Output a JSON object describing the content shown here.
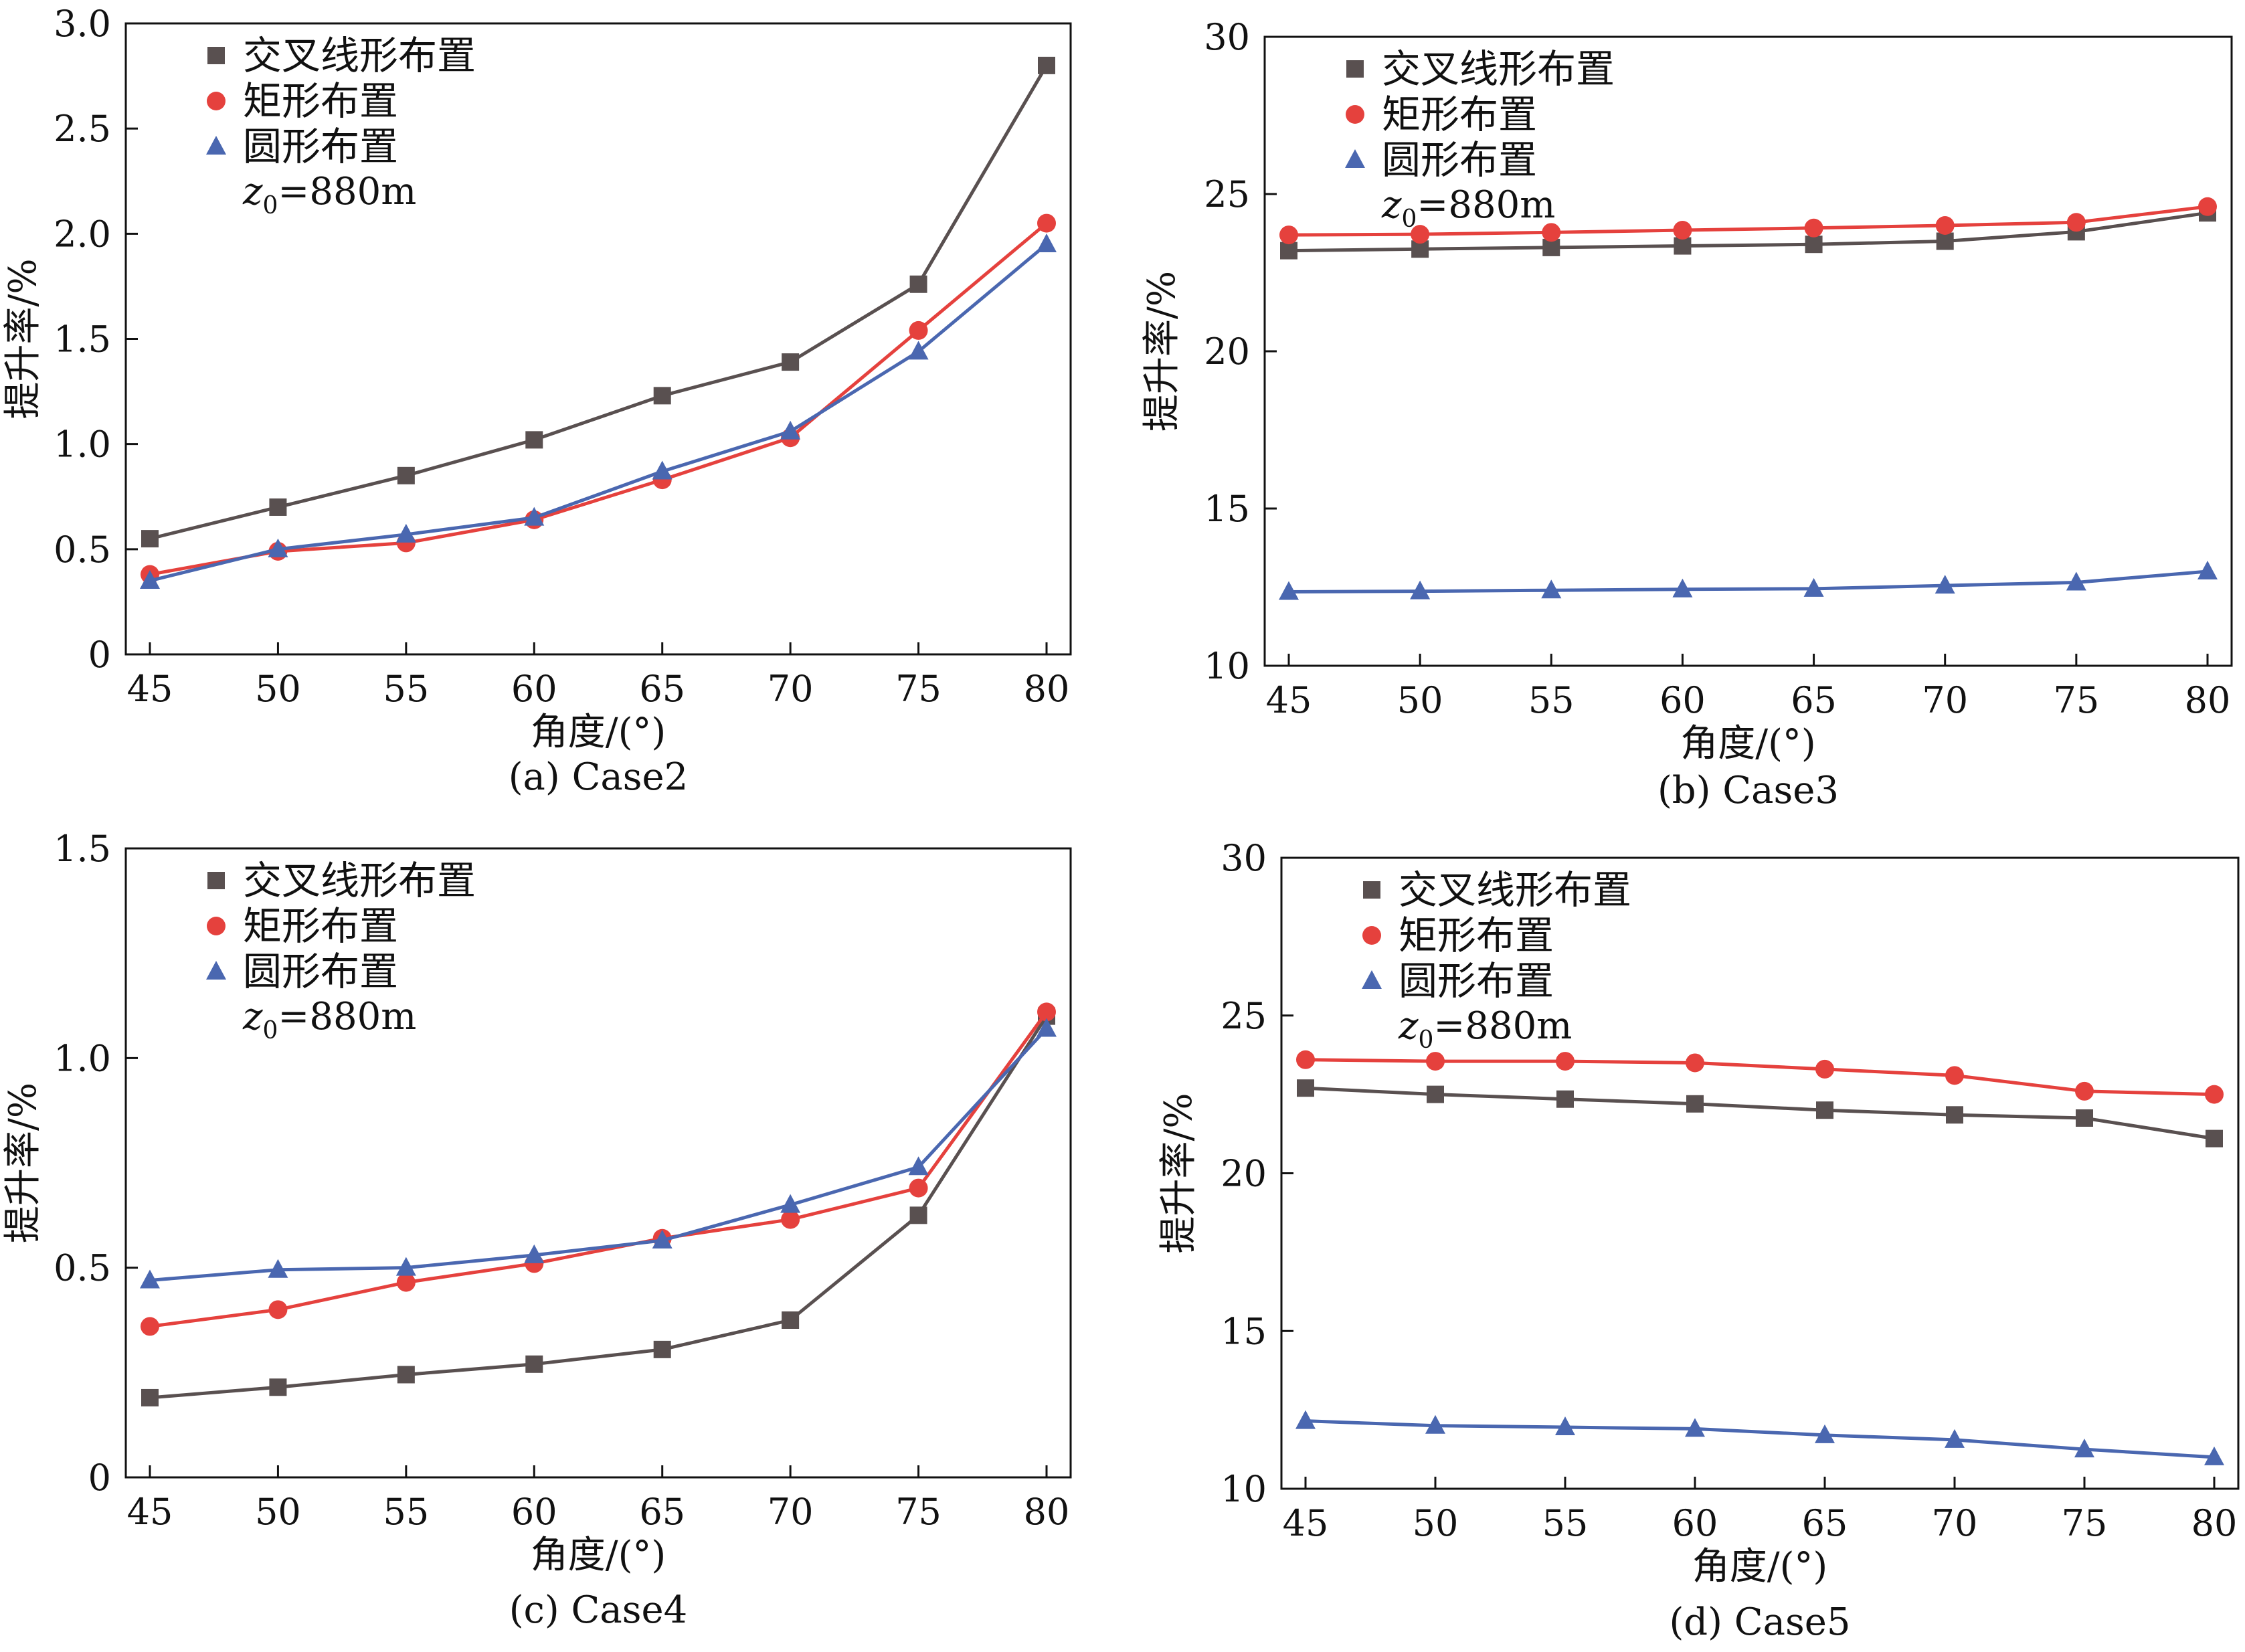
{
  "figure": {
    "caption_note": "",
    "legend_z0_prefix": "z",
    "legend_z0_subscript": "0",
    "legend_z0_suffix": "=880m"
  },
  "series_styles": [
    {
      "name": "交叉线形布置",
      "color": "#595050",
      "marker": "square"
    },
    {
      "name": "矩形布置",
      "color": "#e5413d",
      "marker": "circle"
    },
    {
      "name": "圆形布置",
      "color": "#4a67b0",
      "marker": "triangle"
    }
  ],
  "chart_data": [
    {
      "type": "line",
      "caption": "(a) Case2",
      "xlabel": "角度/(°)",
      "ylabel": "提升率/%",
      "x": [
        45,
        50,
        55,
        60,
        65,
        70,
        75,
        80
      ],
      "xticks": [
        "45",
        "50",
        "55",
        "60",
        "65",
        "70",
        "75",
        "80"
      ],
      "ylim": [
        0,
        3.0
      ],
      "yticks": [
        "0",
        "0.5",
        "1.0",
        "1.5",
        "2.0",
        "2.5",
        "3.0"
      ],
      "legend_position": "top-left",
      "series": [
        {
          "name": "交叉线形布置",
          "values": [
            0.55,
            0.7,
            0.85,
            1.02,
            1.23,
            1.39,
            1.76,
            2.8
          ]
        },
        {
          "name": "矩形布置",
          "values": [
            0.38,
            0.49,
            0.53,
            0.64,
            0.83,
            1.03,
            1.54,
            2.05
          ]
        },
        {
          "name": "圆形布置",
          "values": [
            0.35,
            0.5,
            0.57,
            0.65,
            0.87,
            1.06,
            1.44,
            1.95
          ]
        }
      ]
    },
    {
      "type": "line",
      "caption": "(b) Case3",
      "xlabel": "角度/(°)",
      "ylabel": "提升率/%",
      "x": [
        45,
        50,
        55,
        60,
        65,
        70,
        75,
        80
      ],
      "xticks": [
        "45",
        "50",
        "55",
        "60",
        "65",
        "70",
        "75",
        "80"
      ],
      "ylim": [
        10,
        30
      ],
      "yticks": [
        "10",
        "15",
        "20",
        "25",
        "30"
      ],
      "legend_position": "top-left",
      "series": [
        {
          "name": "交叉线形布置",
          "values": [
            23.2,
            23.25,
            23.3,
            23.35,
            23.4,
            23.5,
            23.8,
            24.4
          ]
        },
        {
          "name": "矩形布置",
          "values": [
            23.7,
            23.72,
            23.78,
            23.85,
            23.92,
            24.0,
            24.1,
            24.6
          ]
        },
        {
          "name": "圆形布置",
          "values": [
            12.35,
            12.37,
            12.4,
            12.43,
            12.45,
            12.55,
            12.65,
            13.0
          ]
        }
      ]
    },
    {
      "type": "line",
      "caption": "(c) Case4",
      "xlabel": "角度/(°)",
      "ylabel": "提升率/%",
      "x": [
        45,
        50,
        55,
        60,
        65,
        70,
        75,
        80
      ],
      "xticks": [
        "45",
        "50",
        "55",
        "60",
        "65",
        "70",
        "75",
        "80"
      ],
      "ylim": [
        0,
        1.5
      ],
      "yticks": [
        "0",
        "0.5",
        "1.0",
        "1.5"
      ],
      "legend_position": "top-left",
      "series": [
        {
          "name": "交叉线形布置",
          "values": [
            0.19,
            0.215,
            0.245,
            0.27,
            0.305,
            0.375,
            0.625,
            1.1
          ]
        },
        {
          "name": "矩形布置",
          "values": [
            0.36,
            0.4,
            0.465,
            0.51,
            0.57,
            0.615,
            0.69,
            1.11
          ]
        },
        {
          "name": "圆形布置",
          "values": [
            0.47,
            0.495,
            0.5,
            0.53,
            0.565,
            0.65,
            0.74,
            1.07
          ]
        }
      ]
    },
    {
      "type": "line",
      "caption": "(d) Case5",
      "xlabel": "角度/(°)",
      "ylabel": "提升率/%",
      "x": [
        45,
        50,
        55,
        60,
        65,
        70,
        75,
        80
      ],
      "xticks": [
        "45",
        "50",
        "55",
        "60",
        "65",
        "70",
        "75",
        "80"
      ],
      "ylim": [
        10,
        30
      ],
      "yticks": [
        "10",
        "15",
        "20",
        "25",
        "30"
      ],
      "legend_position": "top-left",
      "series": [
        {
          "name": "交叉线形布置",
          "values": [
            22.7,
            22.5,
            22.35,
            22.2,
            22.0,
            21.85,
            21.75,
            21.1
          ]
        },
        {
          "name": "矩形布置",
          "values": [
            23.6,
            23.55,
            23.55,
            23.5,
            23.3,
            23.1,
            22.6,
            22.5
          ]
        },
        {
          "name": "圆形布置",
          "values": [
            12.15,
            12.0,
            11.95,
            11.9,
            11.7,
            11.55,
            11.25,
            11.0
          ]
        }
      ]
    }
  ]
}
